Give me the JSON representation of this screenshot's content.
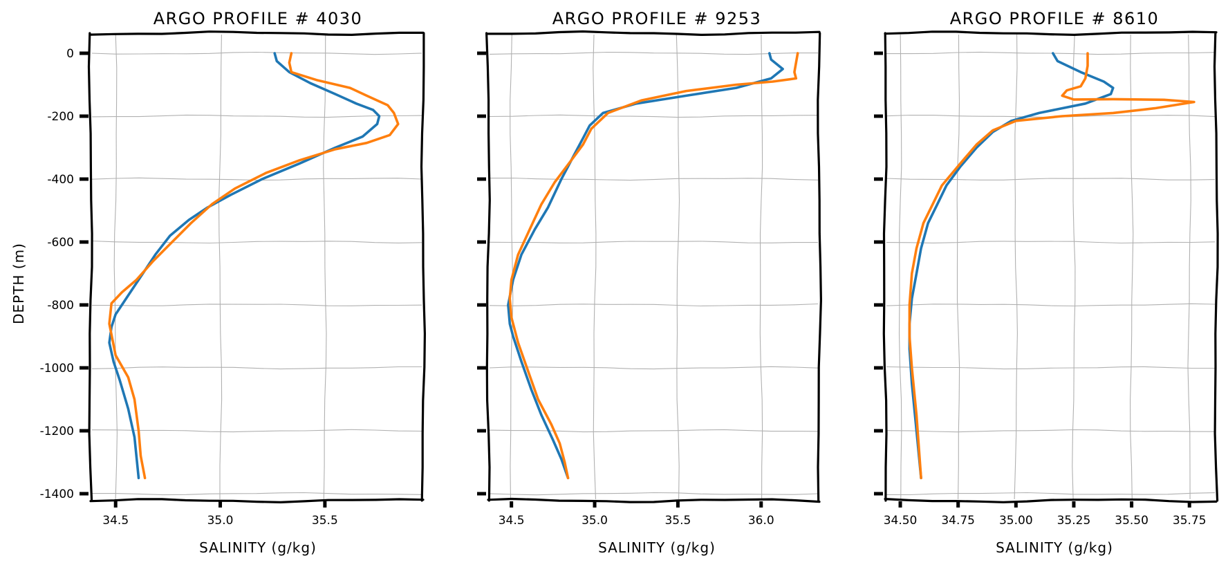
{
  "chart_data": [
    {
      "type": "line",
      "title": "ARGO PROFILE # 4030",
      "xlabel": "SALINITY (g/kg)",
      "ylabel": "DEPTH (m)",
      "xlim": [
        34.42,
        35.93
      ],
      "ylim": [
        -1400,
        0
      ],
      "xticks": [
        34.5,
        35.0,
        35.5
      ],
      "xtick_labels": [
        "34.5",
        "35.0",
        "35.5"
      ],
      "yticks": [
        0,
        -200,
        -400,
        -600,
        -800,
        -1000,
        -1200,
        -1400
      ],
      "ytick_labels": [
        "0",
        "-200",
        "-400",
        "-600",
        "-800",
        "-1000",
        "-1200",
        "-1400"
      ],
      "grid": true,
      "series": [
        {
          "color": "#1f77b4",
          "x": [
            35.26,
            35.27,
            35.33,
            35.43,
            35.55,
            35.65,
            35.73,
            35.76,
            35.75,
            35.68,
            35.55,
            35.38,
            35.2,
            35.05,
            34.94,
            34.85,
            34.76,
            34.69,
            34.63,
            34.57,
            34.53,
            34.5,
            34.48,
            34.47,
            34.49,
            34.52,
            34.56,
            34.59,
            34.61
          ],
          "y": [
            0,
            -25,
            -60,
            -95,
            -130,
            -160,
            -180,
            -200,
            -225,
            -265,
            -300,
            -350,
            -400,
            -450,
            -490,
            -530,
            -580,
            -640,
            -700,
            -760,
            -800,
            -830,
            -870,
            -920,
            -980,
            -1040,
            -1130,
            -1220,
            -1350
          ]
        },
        {
          "color": "#ff7f0e",
          "x": [
            35.34,
            35.33,
            35.34,
            35.46,
            35.62,
            35.7,
            35.75,
            35.8,
            35.83,
            35.85,
            35.81,
            35.7,
            35.55,
            35.38,
            35.22,
            35.07,
            34.96,
            34.86,
            34.77,
            34.68,
            34.6,
            34.53,
            34.48,
            34.47,
            34.5,
            34.56,
            34.59,
            34.61,
            34.62,
            34.64
          ],
          "y": [
            0,
            -30,
            -60,
            -85,
            -110,
            -135,
            -150,
            -165,
            -190,
            -225,
            -260,
            -285,
            -305,
            -340,
            -380,
            -430,
            -480,
            -540,
            -600,
            -660,
            -720,
            -760,
            -795,
            -860,
            -960,
            -1030,
            -1100,
            -1200,
            -1280,
            -1350
          ]
        }
      ]
    },
    {
      "type": "line",
      "title": "ARGO PROFILE # 9253",
      "xlabel": "SALINITY (g/kg)",
      "ylabel": "",
      "xlim": [
        34.41,
        36.3
      ],
      "ylim": [
        -1400,
        0
      ],
      "xticks": [
        34.5,
        35.0,
        35.5,
        36.0
      ],
      "xtick_labels": [
        "34.5",
        "35.0",
        "35.5",
        "36.0"
      ],
      "yticks": [
        0,
        -200,
        -400,
        -600,
        -800,
        -1000,
        -1200,
        -1400
      ],
      "ytick_labels": [
        "",
        "",
        "",
        "",
        "",
        "",
        "",
        ""
      ],
      "grid": true,
      "series": [
        {
          "color": "#1f77b4",
          "x": [
            36.05,
            36.06,
            36.13,
            36.06,
            35.85,
            35.55,
            35.25,
            35.05,
            34.97,
            34.93,
            34.88,
            34.8,
            34.72,
            34.64,
            34.56,
            34.51,
            34.48,
            34.49,
            34.51,
            34.56,
            34.62,
            34.68,
            34.75,
            34.8,
            34.84
          ],
          "y": [
            0,
            -20,
            -50,
            -80,
            -110,
            -135,
            -160,
            -190,
            -230,
            -270,
            -320,
            -400,
            -490,
            -560,
            -640,
            -720,
            -800,
            -860,
            -900,
            -980,
            -1070,
            -1150,
            -1230,
            -1290,
            -1350
          ]
        },
        {
          "color": "#ff7f0e",
          "x": [
            36.22,
            36.21,
            36.2,
            36.21,
            36.07,
            35.85,
            35.55,
            35.28,
            35.08,
            34.98,
            34.93,
            34.86,
            34.76,
            34.68,
            34.61,
            34.54,
            34.5,
            34.49,
            34.5,
            34.54,
            34.6,
            34.66,
            34.74,
            34.79,
            34.82,
            34.84
          ],
          "y": [
            0,
            -30,
            -60,
            -80,
            -90,
            -100,
            -120,
            -150,
            -190,
            -240,
            -290,
            -340,
            -410,
            -480,
            -560,
            -640,
            -720,
            -780,
            -840,
            -920,
            -1010,
            -1100,
            -1180,
            -1240,
            -1300,
            -1350
          ]
        }
      ]
    },
    {
      "type": "line",
      "title": "ARGO PROFILE # 8610",
      "xlabel": "SALINITY (g/kg)",
      "ylabel": "",
      "xlim": [
        34.47,
        35.83
      ],
      "ylim": [
        -1400,
        0
      ],
      "xticks": [
        34.5,
        34.75,
        35.0,
        35.25,
        35.5,
        35.75
      ],
      "xtick_labels": [
        "34.50",
        "34.75",
        "35.00",
        "35.25",
        "35.50",
        "35.75"
      ],
      "yticks": [
        0,
        -200,
        -400,
        -600,
        -800,
        -1000,
        -1200,
        -1400
      ],
      "ytick_labels": [
        "",
        "",
        "",
        "",
        "",
        "",
        "",
        ""
      ],
      "grid": true,
      "series": [
        {
          "color": "#1f77b4",
          "x": [
            35.16,
            35.18,
            35.28,
            35.38,
            35.42,
            35.41,
            35.3,
            35.1,
            34.98,
            34.9,
            34.83,
            34.76,
            34.7,
            34.66,
            34.62,
            34.59,
            34.57,
            34.55,
            34.54,
            34.54,
            34.55,
            34.57,
            34.59
          ],
          "y": [
            0,
            -25,
            -60,
            -90,
            -110,
            -130,
            -160,
            -190,
            -215,
            -250,
            -300,
            -360,
            -420,
            -480,
            -540,
            -620,
            -700,
            -780,
            -860,
            -940,
            -1050,
            -1200,
            -1350
          ]
        },
        {
          "color": "#ff7f0e",
          "x": [
            35.31,
            35.31,
            35.3,
            35.28,
            35.22,
            35.2,
            35.25,
            35.42,
            35.64,
            35.77,
            35.6,
            35.42,
            35.2,
            35.0,
            34.9,
            34.83,
            34.76,
            34.68,
            34.64,
            34.6,
            34.57,
            34.55,
            34.54,
            34.54,
            34.55,
            34.57,
            34.58,
            34.59
          ],
          "y": [
            0,
            -40,
            -80,
            -105,
            -118,
            -135,
            -147,
            -146,
            -148,
            -155,
            -175,
            -190,
            -200,
            -215,
            -245,
            -290,
            -350,
            -420,
            -480,
            -540,
            -620,
            -700,
            -800,
            -900,
            -1000,
            -1150,
            -1250,
            -1350
          ]
        }
      ]
    }
  ]
}
